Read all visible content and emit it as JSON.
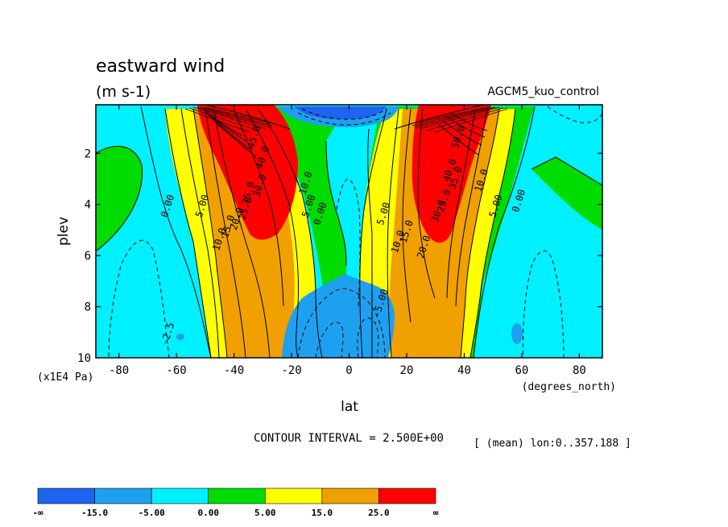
{
  "title": "eastward wind",
  "units": "(m s-1)",
  "run_label": "AGCM5_kuo_control",
  "xlabel": "lat",
  "ylabel": "plev",
  "y_unit_label": "(x1E4 Pa)",
  "x_unit_label": "(degrees_north)",
  "contour_interval_text": "CONTOUR INTERVAL = 2.500E+00",
  "mean_text": "[ (mean) lon:0..357.188 ]",
  "colors": {
    "c0": "#1e64f0",
    "c1": "#1ea0f0",
    "c2": "#00f0ff",
    "c3": "#00dc00",
    "c4": "#ffff00",
    "c5": "#f0a000",
    "c6": "#ff0000"
  },
  "chart_data": {
    "type": "contour",
    "title": "eastward wind",
    "subtitle": "(m s-1)",
    "xlabel": "lat",
    "ylabel": "plev",
    "xlim": [
      -88,
      88
    ],
    "ylim": [
      0.1,
      10
    ],
    "y_inverted": true,
    "x_ticks": [
      -80,
      -60,
      -40,
      -20,
      0,
      20,
      40,
      60,
      80
    ],
    "x_tick_labels": [
      "-80",
      "-60",
      "-40",
      "-20",
      "0",
      "20",
      "40",
      "60",
      "80"
    ],
    "y_ticks": [
      2,
      4,
      6,
      8,
      10
    ],
    "y_tick_labels": [
      "2",
      "4",
      "6",
      "8",
      "10"
    ],
    "contour_interval": 2.5,
    "color_levels": [
      "-∞",
      "-15.0",
      "-5.00",
      "0.00",
      "5.00",
      "15.0",
      "25.0",
      "∞"
    ],
    "jets": [
      {
        "lat": -30,
        "plev": 0.6,
        "max_approx": 50
      },
      {
        "lat": 30,
        "plev": 0.8,
        "max_approx": 50
      }
    ],
    "contour_labels": [
      {
        "text": "0.00",
        "lat": -62,
        "plev": 4.1
      },
      {
        "text": "5.00",
        "lat": -50,
        "plev": 4.1
      },
      {
        "text": "10.0",
        "lat": -44,
        "plev": 5.4
      },
      {
        "text": "15.0",
        "lat": -41,
        "plev": 4.9
      },
      {
        "text": "20.0",
        "lat": -38,
        "plev": 4.6
      },
      {
        "text": "25.0",
        "lat": -35,
        "plev": 4.2
      },
      {
        "text": "30.0",
        "lat": -30,
        "plev": 3.3
      },
      {
        "text": "35.0",
        "lat": -34,
        "plev": 3.6
      },
      {
        "text": "40.0",
        "lat": -29,
        "plev": 2.2
      },
      {
        "text": "45.0",
        "lat": -32,
        "plev": 1.4
      },
      {
        "text": "10.0",
        "lat": -14,
        "plev": 3.2
      },
      {
        "text": "5.00",
        "lat": -13,
        "plev": 4.1
      },
      {
        "text": "0.00",
        "lat": -9,
        "plev": 4.4
      },
      {
        "text": "5.00",
        "lat": 13,
        "plev": 4.4
      },
      {
        "text": "10.0",
        "lat": 18,
        "plev": 5.5
      },
      {
        "text": "15.0",
        "lat": 21,
        "plev": 5.1
      },
      {
        "text": "20.0",
        "lat": 27,
        "plev": 5.7
      },
      {
        "text": "25.0",
        "lat": 34,
        "plev": 3.9
      },
      {
        "text": "30.0",
        "lat": 32,
        "plev": 4.3
      },
      {
        "text": "35.0",
        "lat": 38,
        "plev": 3.0
      },
      {
        "text": "40.0",
        "lat": 36,
        "plev": 2.7
      },
      {
        "text": "50.0",
        "lat": 39,
        "plev": 1.4
      },
      {
        "text": "10.0",
        "lat": 47,
        "plev": 3.1
      },
      {
        "text": "5.00",
        "lat": 52,
        "plev": 4.1
      },
      {
        "text": "0.00",
        "lat": 60,
        "plev": 3.9
      },
      {
        "text": "-5.00",
        "lat": 12,
        "plev": 7.9
      },
      {
        "text": "-2.5",
        "lat": -62,
        "plev": 9.1
      }
    ]
  }
}
